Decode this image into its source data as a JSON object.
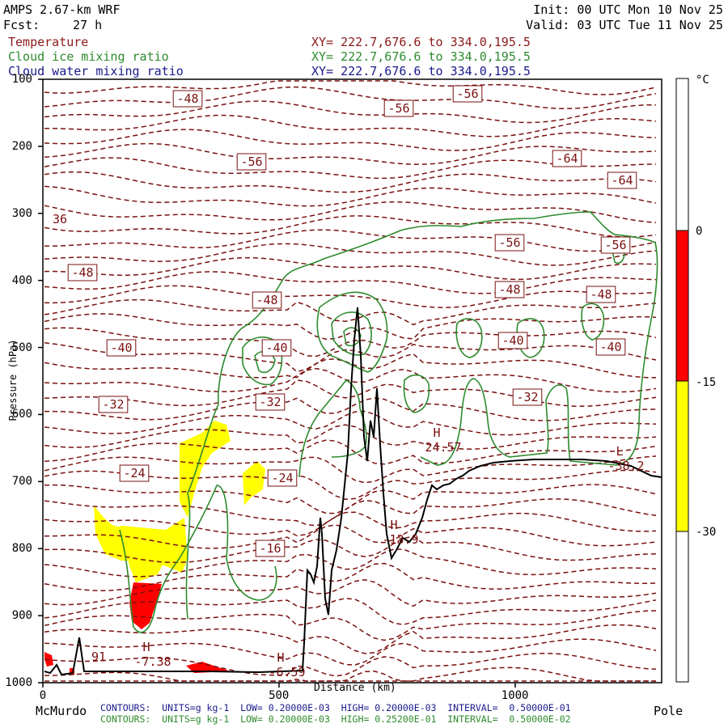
{
  "header": {
    "model": "AMPS 2.67-km WRF",
    "fcst_label": "Fcst:",
    "fcst_value": "27 h",
    "init": "Init: 00 UTC Mon 10 Nov 25",
    "valid": "Valid: 03 UTC Tue 11 Nov 25"
  },
  "fields": [
    {
      "name": "Temperature",
      "xy": "XY= 222.7,676.6 to 334.0,195.5",
      "color": "#8b1a1a"
    },
    {
      "name": "Cloud ice mixing ratio",
      "xy": "XY= 222.7,676.6 to 334.0,195.5",
      "color": "#2e8b2e"
    },
    {
      "name": "Cloud water mixing ratio",
      "xy": "XY= 222.7,676.6 to 334.0,195.5",
      "color": "#1a1a8b"
    }
  ],
  "colorbar": {
    "unit": "°C",
    "labels": [
      "0",
      "-15",
      "-30"
    ],
    "colors": [
      "#ff0000",
      "#ffff00"
    ]
  },
  "footer": {
    "left_end": "McMurdo",
    "right_end": "Pole",
    "line1": "CONTOURS:  UNITS=g kg-1  LOW= 0.20000E-03  HIGH= 0.20000E-03  INTERVAL=  0.50000E-01",
    "line2": "CONTOURS:  UNITS=g kg-1  LOW= 0.20000E-03  HIGH= 0.25200E-01  INTERVAL=  0.50000E-02",
    "xaxis_title": "Distance (km)"
  },
  "chart_data": {
    "type": "cross-section",
    "ylabel": "Pressure (hPa)",
    "xlabel": "Distance (km)",
    "ylim": [
      1000,
      100
    ],
    "xlim": [
      0,
      1310
    ],
    "yticks": [
      "100",
      "200",
      "300",
      "400",
      "500",
      "600",
      "700",
      "800",
      "900",
      "1000"
    ],
    "xticks": [
      "0",
      "500",
      "1000"
    ],
    "temperature_labels": [
      "-48",
      "-56",
      "-56",
      "-56",
      "-64",
      "-64",
      "-56",
      "-56",
      "-48",
      "-48",
      "-48",
      "-48",
      "-40",
      "-40",
      "-40",
      "-40",
      "-32",
      "-32",
      "-32",
      "-24",
      "-24",
      "-16"
    ],
    "extrema": [
      {
        "type": "H",
        "value": "24.57"
      },
      {
        "type": "H",
        "value": "-13.9"
      },
      {
        "type": "H",
        "value": "-7.38"
      },
      {
        "type": "H",
        "value": "-6.59"
      },
      {
        "type": "L",
        "value": "-38.2"
      }
    ],
    "partial_labels": [
      "36",
      "91"
    ]
  }
}
